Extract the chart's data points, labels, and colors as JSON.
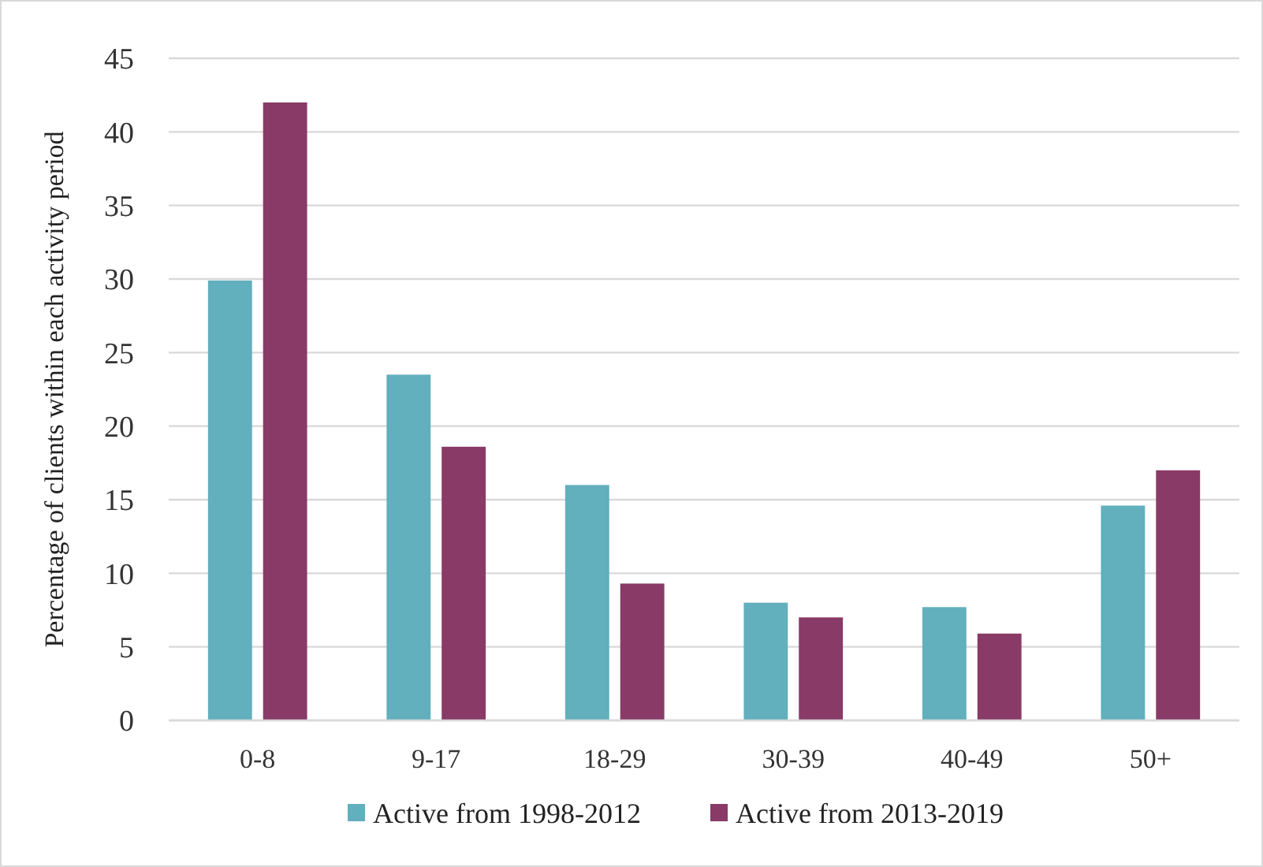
{
  "chart_data": {
    "type": "bar",
    "ylabel": "Percentage of clients within each activity period",
    "categories": [
      "0-8",
      "9-17",
      "18-29",
      "30-39",
      "40-49",
      "50+"
    ],
    "series": [
      {
        "name": "Active from 1998-2012",
        "color": "#62afbd",
        "values": [
          29.9,
          23.5,
          16.0,
          8.0,
          7.7,
          14.6
        ]
      },
      {
        "name": "Active from 2013-2019",
        "color": "#893a67",
        "values": [
          42.0,
          18.6,
          9.3,
          7.0,
          5.9,
          17.0
        ]
      }
    ],
    "ylim": [
      0,
      45
    ],
    "yticks": [
      0,
      5,
      10,
      15,
      20,
      25,
      30,
      35,
      40,
      45
    ],
    "grid": "y",
    "legend": "bottom"
  }
}
